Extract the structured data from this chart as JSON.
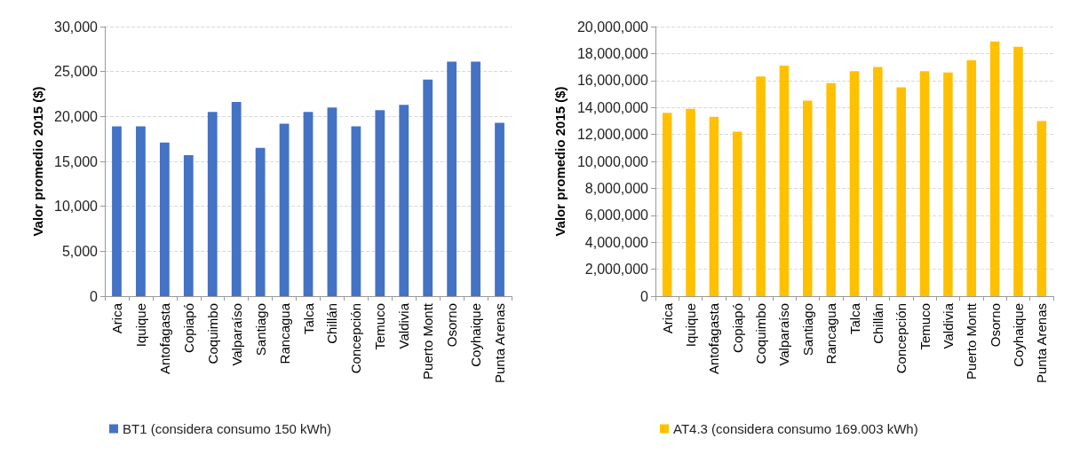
{
  "chart_data": [
    {
      "type": "bar",
      "ylabel": "Valor promedio 2015 ($)",
      "categories": [
        "Arica",
        "Iquique",
        "Antofagasta",
        "Copiapó",
        "Coquimbo",
        "Valparaíso",
        "Santiago",
        "Rancagua",
        "Talca",
        "Chillán",
        "Concepción",
        "Temuco",
        "Valdivia",
        "Puerto Montt",
        "Osorno",
        "Coyhaique",
        "Punta Arenas"
      ],
      "series": [
        {
          "name": "BT1 (considera consumo 150 kWh)",
          "color": "#4472c4",
          "values": [
            18900,
            18900,
            17100,
            15700,
            20500,
            21600,
            16500,
            19200,
            20500,
            21000,
            18900,
            20700,
            21300,
            24100,
            26100,
            26100,
            19300
          ]
        }
      ],
      "ylim": [
        0,
        30000
      ],
      "yticks": [
        {
          "value": 0,
          "label": "0"
        },
        {
          "value": 5000,
          "label": "5,000"
        },
        {
          "value": 10000,
          "label": "10,000"
        },
        {
          "value": 15000,
          "label": "15,000"
        },
        {
          "value": 20000,
          "label": "20,000"
        },
        {
          "value": 25000,
          "label": "25,000"
        },
        {
          "value": 30000,
          "label": "30,000"
        }
      ],
      "grid": "y",
      "legend": "bottom"
    },
    {
      "type": "bar",
      "ylabel": "Valor promedio 2015 ($)",
      "categories": [
        "Arica",
        "Iquique",
        "Antofagasta",
        "Copiapó",
        "Coquimbo",
        "Valparaíso",
        "Santiago",
        "Rancagua",
        "Talca",
        "Chillán",
        "Concepción",
        "Temuco",
        "Valdivia",
        "Puerto Montt",
        "Osorno",
        "Coyhaique",
        "Punta Arenas"
      ],
      "series": [
        {
          "name": "AT4.3 (considera consumo 169.003 kWh)",
          "color": "#ffc000",
          "values": [
            13600000,
            13900000,
            13300000,
            12200000,
            16300000,
            17100000,
            14500000,
            15800000,
            16700000,
            17000000,
            15500000,
            16700000,
            16600000,
            17500000,
            18900000,
            18500000,
            13000000
          ]
        }
      ],
      "ylim": [
        0,
        20000000
      ],
      "yticks": [
        {
          "value": 0,
          "label": "0"
        },
        {
          "value": 2000000,
          "label": "2,000,000"
        },
        {
          "value": 4000000,
          "label": "4,000,000"
        },
        {
          "value": 6000000,
          "label": "6,000,000"
        },
        {
          "value": 8000000,
          "label": "8,000,000"
        },
        {
          "value": 10000000,
          "label": "10,000,000"
        },
        {
          "value": 12000000,
          "label": "12,000,000"
        },
        {
          "value": 14000000,
          "label": "14,000,000"
        },
        {
          "value": 16000000,
          "label": "16,000,000"
        },
        {
          "value": 18000000,
          "label": "18,000,000"
        },
        {
          "value": 20000000,
          "label": "20,000,000"
        }
      ],
      "grid": "y",
      "legend": "bottom"
    }
  ]
}
